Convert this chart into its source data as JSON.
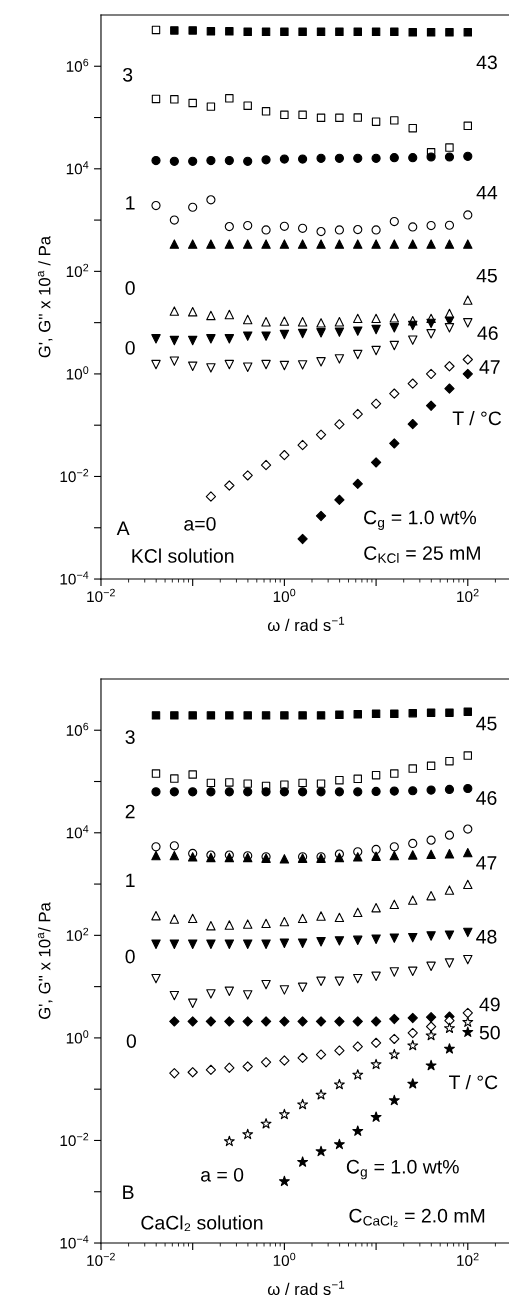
{
  "chart_data": [
    {
      "type": "scatter",
      "log": "xy",
      "xlabel": "ω / rad s$^{−1}$",
      "ylabel": "G', G'' x 10$^{a}$ / Pa",
      "xlim": [
        0.01,
        300
      ],
      "ylim": [
        0.0001,
        10000000
      ],
      "xticks": [
        {
          "value": 0.01,
          "label": "10$^{−2}$"
        },
        {
          "value": 0.1,
          "label": null
        },
        {
          "value": 1,
          "label": "10$^{0}$"
        },
        {
          "value": 10,
          "label": null
        },
        {
          "value": 100,
          "label": "10$^{2}$"
        }
      ],
      "yticks": [
        {
          "value": 0.0001,
          "label": "10$^{−4}$"
        },
        {
          "value": 0.001,
          "label": null
        },
        {
          "value": 0.01,
          "label": "10$^{−2}$"
        },
        {
          "value": 0.1,
          "label": null
        },
        {
          "value": 1,
          "label": "10$^{0}$"
        },
        {
          "value": 10,
          "label": null
        },
        {
          "value": 100,
          "label": "10$^{2}$"
        },
        {
          "value": 1000,
          "label": null
        },
        {
          "value": 10000,
          "label": "10$^{4}$"
        },
        {
          "value": 100000,
          "label": null
        },
        {
          "value": 1000000,
          "label": "10$^{6}$"
        }
      ],
      "x": [
        0.0398,
        0.0631,
        0.1,
        0.158,
        0.251,
        0.398,
        0.631,
        1,
        1.58,
        2.51,
        3.98,
        6.31,
        10,
        15.8,
        25.1,
        39.8,
        63.1,
        100
      ],
      "series": [
        {
          "marker": "square",
          "color": "#000000",
          "values": [
            null,
            5000000.0,
            5000000.0,
            4800000.0,
            4800000.0,
            4700000.0,
            4700000.0,
            4700000.0,
            4700000.0,
            4700000.0,
            4700000.0,
            4700000.0,
            4700000.0,
            4700000.0,
            4600000.0,
            4600000.0,
            4600000.0,
            4600000.0
          ]
        },
        {
          "marker": "square-open",
          "color": "#000000",
          "x": [
            0.0398
          ],
          "values": [
            5100000.0
          ]
        },
        {
          "marker": "square-open",
          "color": "#000000",
          "values": [
            230000.0,
            227000.0,
            192000.0,
            163000.0,
            237000.0,
            170000.0,
            132000.0,
            113000.0,
            113000.0,
            99000.0,
            99000.0,
            100000.0,
            83000.0,
            88000.0,
            62000.0,
            21000.0,
            26000.0,
            69000.0
          ]
        },
        {
          "marker": "circle",
          "color": "#000000",
          "values": [
            14500.0,
            14000.0,
            14000.0,
            14500.0,
            14500.0,
            14000.0,
            15000.0,
            15500.0,
            15500.0,
            16000.0,
            16000.0,
            16000.0,
            16000.0,
            16500.0,
            16500.0,
            17000.0,
            17000.0,
            17500.0
          ]
        },
        {
          "marker": "circle-open",
          "color": "#000000",
          "values": [
            1920,
            1000,
            1780,
            2480,
            746,
            781,
            643,
            757,
            692,
            596,
            643,
            652,
            643,
            935,
            735,
            781,
            793,
            1260
          ]
        },
        {
          "marker": "triangle",
          "color": "#000000",
          "values": [
            null,
            340,
            340,
            340,
            340,
            340,
            340,
            340,
            340,
            340,
            340,
            340,
            340,
            340,
            340,
            340,
            340,
            340
          ]
        },
        {
          "marker": "triangle-open",
          "color": "#000000",
          "values": [
            null,
            16.8,
            16.3,
            13.8,
            14.4,
            11.5,
            10.4,
            10.7,
            10.4,
            9.9,
            10.4,
            12.1,
            12.1,
            12.4,
            10.9,
            12.1,
            15.1,
            27.5
          ]
        },
        {
          "marker": "triangle-down",
          "color": "#000000",
          "values": [
            4.83,
            4.48,
            4.48,
            4.83,
            4.83,
            5.45,
            5.45,
            5.87,
            6.14,
            6.33,
            6.52,
            6.82,
            7.35,
            7.93,
            8.81,
            9.64,
            10.7,
            null
          ]
        },
        {
          "marker": "triangle-down-open",
          "color": "#000000",
          "values": [
            1.52,
            1.77,
            1.41,
            1.31,
            1.52,
            1.35,
            1.52,
            1.46,
            1.5,
            1.72,
            1.96,
            2.39,
            2.86,
            3.58,
            4.55,
            6.05,
            7.93,
            9.93
          ]
        },
        {
          "marker": "diamond-open",
          "color": "#000000",
          "values": [
            null,
            null,
            null,
            0.00406,
            0.00667,
            0.0105,
            0.0167,
            0.0261,
            0.041,
            0.0652,
            0.104,
            0.165,
            0.263,
            0.413,
            0.647,
            1.0,
            1.41,
            1.91
          ]
        },
        {
          "marker": "diamond",
          "color": "#000000",
          "values": [
            null,
            null,
            null,
            null,
            null,
            null,
            null,
            null,
            0.000605,
            0.0017,
            0.0035,
            0.00719,
            0.0188,
            0.0442,
            0.105,
            0.24,
            0.517,
            1.0
          ]
        }
      ],
      "annotations": [
        "3",
        "1",
        "0",
        "0",
        "a=0",
        "43",
        "44",
        "45",
        "46",
        "47",
        "T / °C",
        "A",
        "KCl solution",
        "C$_{g}$ = 1.0 wt%",
        "C$_{KCl}$ = 25 mM"
      ]
    },
    {
      "type": "scatter",
      "log": "xy",
      "xlabel": "ω / rad s$^{−1}$",
      "ylabel": "G', G'' x 10$^{a}$/ Pa",
      "xlim": [
        0.01,
        300
      ],
      "ylim": [
        0.0001,
        10000000
      ],
      "xticks": [
        {
          "value": 0.01,
          "label": "10$^{−2}$"
        },
        {
          "value": 0.1,
          "label": null
        },
        {
          "value": 1,
          "label": "10$^{0}$"
        },
        {
          "value": 10,
          "label": null
        },
        {
          "value": 100,
          "label": "10$^{2}$"
        }
      ],
      "yticks": [
        {
          "value": 0.0001,
          "label": "10$^{−4}$"
        },
        {
          "value": 0.001,
          "label": null
        },
        {
          "value": 0.01,
          "label": "10$^{−2}$"
        },
        {
          "value": 0.1,
          "label": null
        },
        {
          "value": 1,
          "label": "10$^{0}$"
        },
        {
          "value": 10,
          "label": null
        },
        {
          "value": 100,
          "label": "10$^{2}$"
        },
        {
          "value": 1000,
          "label": null
        },
        {
          "value": 10000,
          "label": "10$^{4}$"
        },
        {
          "value": 100000,
          "label": null
        },
        {
          "value": 1000000,
          "label": "10$^{6}$"
        }
      ],
      "x": [
        0.0398,
        0.0631,
        0.1,
        0.158,
        0.251,
        0.398,
        0.631,
        1,
        1.58,
        2.51,
        3.98,
        6.31,
        10,
        15.8,
        25.1,
        39.8,
        63.1,
        100
      ],
      "series": [
        {
          "marker": "square",
          "color": "#000000",
          "values": [
            1950000.0,
            1950000.0,
            1950000.0,
            1950000.0,
            1950000.0,
            1950000.0,
            1950000.0,
            1950000.0,
            1950000.0,
            1950000.0,
            2000000.0,
            2050000.0,
            2100000.0,
            2100000.0,
            2150000.0,
            2200000.0,
            2200000.0,
            2300000.0
          ]
        },
        {
          "marker": "square-open",
          "color": "#000000",
          "values": [
            143000.0,
            114000.0,
            137000.0,
            94000.0,
            96000.0,
            91000.0,
            82000.0,
            87000.0,
            94000.0,
            91000.0,
            106000.0,
            113000.0,
            133000.0,
            143000.0,
            179000.0,
            202000.0,
            249000.0,
            321000.0
          ]
        },
        {
          "marker": "circle",
          "color": "#000000",
          "values": [
            63000.0,
            63000.0,
            63000.0,
            63000.0,
            63000.0,
            63000.0,
            63000.0,
            63000.0,
            63000.0,
            63000.0,
            63000.0,
            63000.0,
            64000.0,
            65000.0,
            66000.0,
            68000.0,
            70000.0,
            73000.0
          ]
        },
        {
          "marker": "circle-open",
          "color": "#000000",
          "values": [
            5330,
            5580,
            3960,
            3670,
            3670,
            3560,
            3410,
            null,
            3410,
            3410,
            3840,
            4260,
            4730,
            5330,
            6190,
            7190,
            9000,
            11800
          ]
        },
        {
          "marker": "triangle",
          "color": "#000000",
          "values": [
            3600,
            3600,
            3400,
            3300,
            3300,
            3300,
            3200,
            3100,
            3200,
            3200,
            3300,
            3400,
            3500,
            3600,
            3700,
            3800,
            3900,
            4100
          ]
        },
        {
          "marker": "triangle-open",
          "color": "#000000",
          "values": [
            242,
            208,
            214,
            154,
            159,
            166,
            171,
            185,
            214,
            238,
            224,
            281,
            346,
            402,
            488,
            593,
            764,
            986
          ]
        },
        {
          "marker": "triangle-down",
          "color": "#000000",
          "values": [
            67,
            67,
            67,
            67,
            67,
            67,
            67,
            70,
            70,
            75,
            78,
            80,
            84,
            88,
            90,
            97,
            101,
            114
          ]
        },
        {
          "marker": "triangle-down-open",
          "color": "#000000",
          "values": [
            14.3,
            6.68,
            4.74,
            7.2,
            8.11,
            6.88,
            10.9,
            8.61,
            9.7,
            12.7,
            12.7,
            14.3,
            15.9,
            19.3,
            19.9,
            24.9,
            28.9,
            33.6
          ]
        },
        {
          "marker": "diamond",
          "color": "#000000",
          "values": [
            null,
            2.1,
            2.1,
            2.1,
            2.1,
            2.1,
            2.1,
            2.1,
            2.1,
            2.1,
            2.1,
            2.1,
            2.1,
            2.34,
            2.45,
            2.53,
            2.6,
            null
          ]
        },
        {
          "marker": "diamond-open",
          "color": "#000000",
          "values": [
            null,
            0.205,
            0.214,
            0.238,
            0.261,
            0.277,
            0.336,
            0.362,
            0.408,
            0.473,
            0.566,
            0.678,
            0.8,
            0.956,
            1.25,
            1.66,
            2.18,
            3.07
          ]
        },
        {
          "marker": "star-open",
          "color": "#000000",
          "values": [
            null,
            null,
            null,
            null,
            0.00957,
            0.0131,
            0.0211,
            0.0321,
            0.0502,
            0.0776,
            0.123,
            0.19,
            0.303,
            0.473,
            0.709,
            1.11,
            1.54,
            2.02
          ]
        },
        {
          "marker": "star",
          "color": "#000000",
          "values": [
            null,
            null,
            null,
            null,
            null,
            null,
            null,
            0.00159,
            0.00379,
            0.0061,
            0.00836,
            0.0152,
            0.0285,
            0.0602,
            0.127,
            0.289,
            0.611,
            1.29
          ]
        }
      ],
      "annotations": [
        "3",
        "2",
        "1",
        "0",
        "0",
        "a = 0",
        "45",
        "46",
        "47",
        "48",
        "49",
        "50",
        "T / °C",
        "B",
        "CaCl₂ solution",
        "C$_{g}$ = 1.0 wt%",
        "C$_{CaCl₂}$ = 2.0 mM"
      ]
    }
  ]
}
